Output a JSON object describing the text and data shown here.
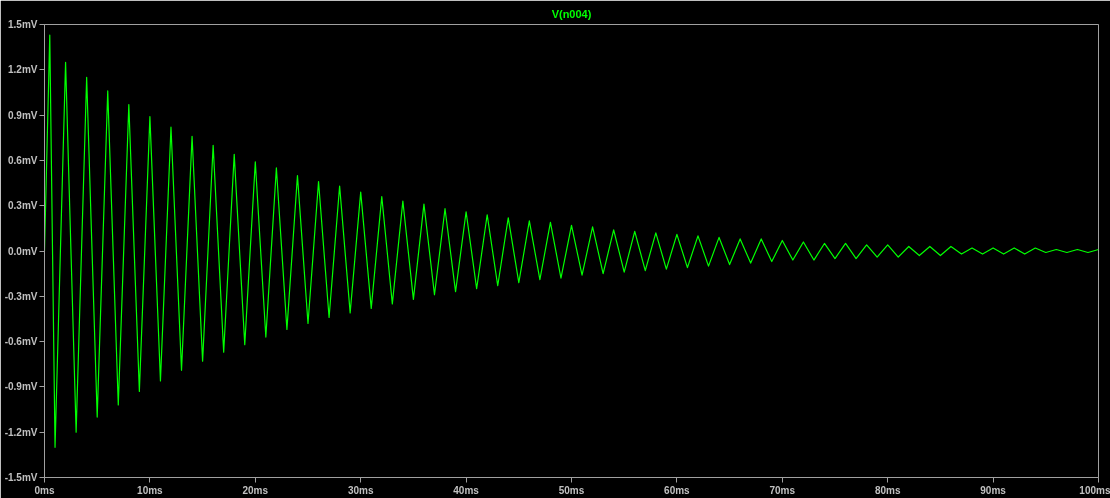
{
  "chart_data": {
    "type": "line",
    "title": "V(n004)",
    "x": [
      0,
      0.5,
      1,
      2,
      3,
      4,
      5,
      6,
      7,
      8,
      9,
      10,
      11,
      12,
      13,
      14,
      15,
      16,
      17,
      18,
      19,
      20,
      21,
      22,
      23,
      24,
      25,
      26,
      27,
      28,
      29,
      30,
      31,
      32,
      33,
      34,
      35,
      36,
      37,
      38,
      39,
      40,
      41,
      42,
      43,
      44,
      45,
      46,
      47,
      48,
      49,
      50,
      51,
      52,
      53,
      54,
      55,
      56,
      57,
      58,
      59,
      60,
      61,
      62,
      63,
      64,
      65,
      66,
      67,
      68,
      69,
      70,
      71,
      72,
      73,
      74,
      75,
      76,
      77,
      78,
      79,
      80,
      81,
      82,
      83,
      84,
      85,
      86,
      87,
      88,
      89,
      90,
      91,
      92,
      93,
      94,
      95,
      96,
      97,
      98,
      99,
      100
    ],
    "series": [
      {
        "color": "#00ff00",
        "values": [
          0,
          1.43,
          -1.3,
          1.25,
          -1.2,
          1.15,
          -1.1,
          1.06,
          -1.02,
          0.97,
          -0.93,
          0.89,
          -0.86,
          0.82,
          -0.79,
          0.76,
          -0.73,
          0.7,
          -0.67,
          0.64,
          -0.62,
          0.59,
          -0.57,
          0.55,
          -0.52,
          0.5,
          -0.48,
          0.46,
          -0.44,
          0.43,
          -0.41,
          0.39,
          -0.38,
          0.36,
          -0.35,
          0.33,
          -0.32,
          0.31,
          -0.29,
          0.28,
          -0.27,
          0.26,
          -0.25,
          0.24,
          -0.23,
          0.22,
          -0.21,
          0.2,
          -0.19,
          0.19,
          -0.18,
          0.17,
          -0.16,
          0.16,
          -0.15,
          0.14,
          -0.14,
          0.13,
          -0.13,
          0.12,
          -0.12,
          0.11,
          -0.11,
          0.1,
          -0.1,
          0.09,
          -0.09,
          0.08,
          -0.08,
          0.08,
          -0.07,
          0.07,
          -0.06,
          0.06,
          -0.06,
          0.05,
          -0.05,
          0.05,
          -0.05,
          0.04,
          -0.04,
          0.04,
          -0.04,
          0.03,
          -0.03,
          0.03,
          -0.03,
          0.03,
          -0.02,
          0.02,
          -0.02,
          0.02,
          -0.02,
          0.02,
          -0.02,
          0.02,
          -0.01,
          0.01,
          -0.01,
          0.01,
          -0.01,
          0.01
        ]
      }
    ],
    "xlim": [
      0,
      100
    ],
    "xticks": [
      {
        "value": 0,
        "label": "0ms"
      },
      {
        "value": 10,
        "label": "10ms"
      },
      {
        "value": 20,
        "label": "20ms"
      },
      {
        "value": 30,
        "label": "30ms"
      },
      {
        "value": 40,
        "label": "40ms"
      },
      {
        "value": 50,
        "label": "50ms"
      },
      {
        "value": 60,
        "label": "60ms"
      },
      {
        "value": 70,
        "label": "70ms"
      },
      {
        "value": 80,
        "label": "80ms"
      },
      {
        "value": 90,
        "label": "90ms"
      },
      {
        "value": 100,
        "label": "100ms"
      }
    ],
    "ylim": [
      -1.5,
      1.5
    ],
    "yticks": [
      {
        "value": -1.5,
        "label": "-1.5mV"
      },
      {
        "value": -1.2,
        "label": "-1.2mV"
      },
      {
        "value": -0.9,
        "label": "-0.9mV"
      },
      {
        "value": -0.6,
        "label": "-0.6mV"
      },
      {
        "value": -0.3,
        "label": "-0.3mV"
      },
      {
        "value": 0,
        "label": "0.0mV"
      },
      {
        "value": 0.3,
        "label": "0.3mV"
      },
      {
        "value": 0.6,
        "label": "0.6mV"
      },
      {
        "value": 0.9,
        "label": "0.9mV"
      },
      {
        "value": 1.2,
        "label": "1.2mV"
      },
      {
        "value": 1.5,
        "label": "1.5mV"
      }
    ],
    "grid": false,
    "marker": "none",
    "line_style": "solid"
  }
}
